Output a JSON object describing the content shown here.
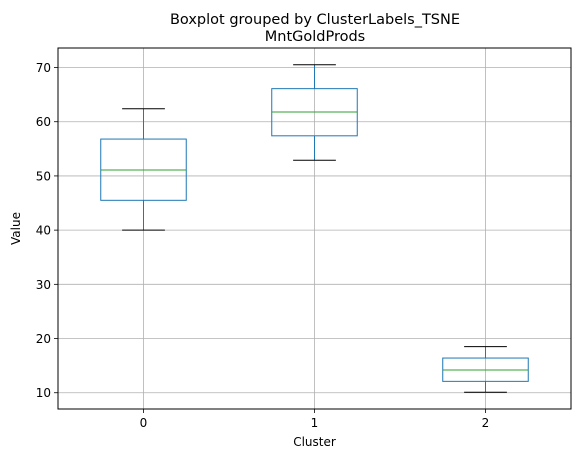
{
  "chart_data": {
    "type": "box",
    "suptitle": "Boxplot grouped by ClusterLabels_TSNE",
    "title": "MntGoldProds",
    "xlabel": "Cluster",
    "ylabel": "Value",
    "ylim": [
      7.0,
      73.6
    ],
    "yticks": [
      10,
      20,
      30,
      40,
      50,
      60,
      70
    ],
    "grid": true,
    "categories": [
      "0",
      "1",
      "2"
    ],
    "boxes": [
      {
        "category": "0",
        "whisker_low": 40.0,
        "q1": 45.5,
        "median": 51.1,
        "q3": 56.8,
        "whisker_high": 62.4
      },
      {
        "category": "1",
        "whisker_low": 52.9,
        "q1": 57.4,
        "median": 61.8,
        "q3": 66.1,
        "whisker_high": 70.5
      },
      {
        "category": "2",
        "whisker_low": 10.1,
        "q1": 12.1,
        "median": 14.2,
        "q3": 16.4,
        "whisker_high": 18.5
      }
    ],
    "colors": {
      "box": "#1f77b4",
      "median": "#2ca02c",
      "whisker_cap": "#000000",
      "grid": "#b0b0b0"
    }
  }
}
